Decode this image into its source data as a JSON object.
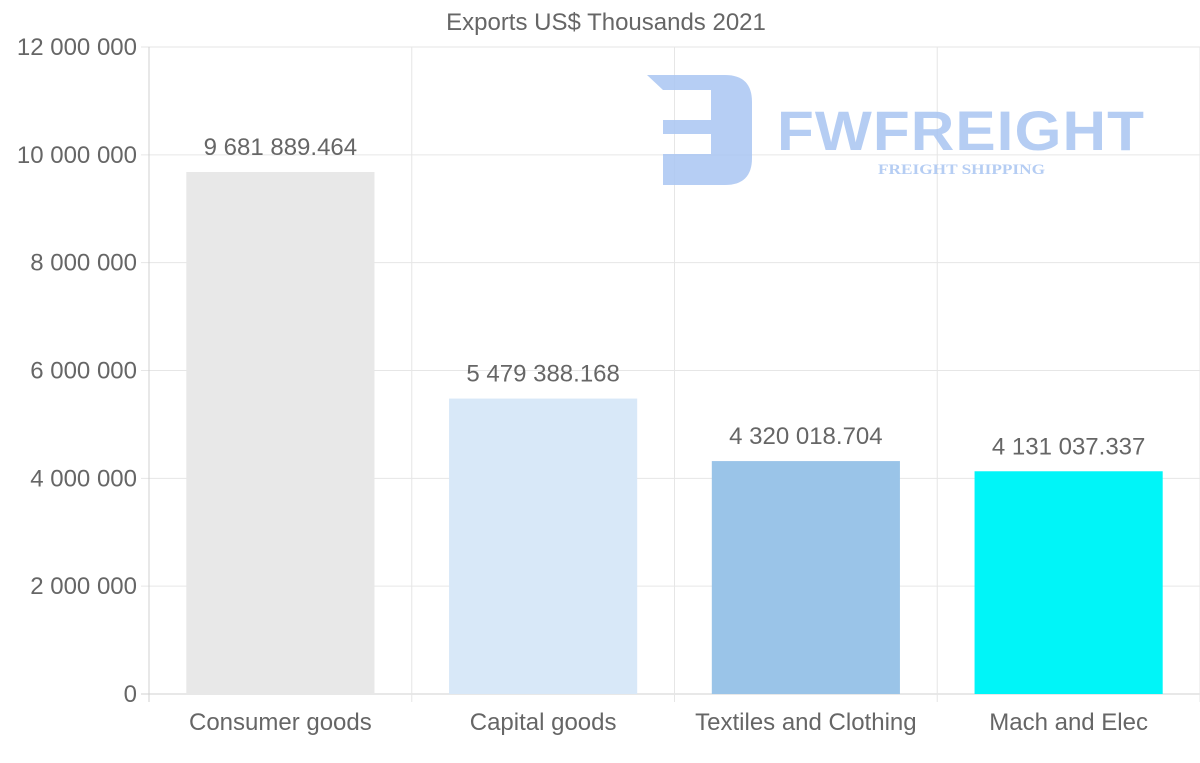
{
  "chart_data": {
    "type": "bar",
    "title": "Exports US$ Thousands 2021",
    "xlabel": "",
    "ylabel": "",
    "categories": [
      "Consumer goods",
      "Capital goods",
      "Textiles and Clothing",
      "Mach and Elec"
    ],
    "values": [
      9681889.464,
      5479388.168,
      4320018.704,
      4131037.337
    ],
    "value_labels": [
      "9 681 889.464",
      "5 479 388.168",
      "4 320 018.704",
      "4 131 037.337"
    ],
    "colors": [
      "#e8e8e8",
      "#d8e8f8",
      "#9ac4e8",
      "#00f5f8"
    ],
    "ylim": [
      0,
      12000000
    ],
    "yticks": [
      0,
      2000000,
      4000000,
      6000000,
      8000000,
      10000000,
      12000000
    ],
    "ytick_labels": [
      "0",
      "2 000 000",
      "4 000 000",
      "6 000 000",
      "8 000 000",
      "10 000 000",
      "12 000 000"
    ],
    "grid": true,
    "legend": "none"
  },
  "watermark": {
    "brand": "FWFREIGHT",
    "tagline": "FREIGHT SHIPPING",
    "color": "#a9c5f2"
  }
}
